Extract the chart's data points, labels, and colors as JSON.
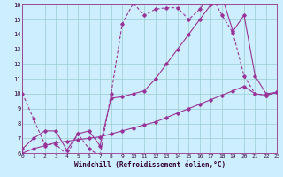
{
  "xlabel": "Windchill (Refroidissement éolien,°C)",
  "bg_color": "#cceeff",
  "line_color": "#993399",
  "grid_color": "#99cccc",
  "xmin": 0,
  "xmax": 23,
  "ymin": 6,
  "ymax": 16,
  "line1_x": [
    0,
    1,
    2,
    3,
    4,
    5,
    6,
    7,
    8,
    9,
    10,
    11,
    12,
    13,
    14,
    15,
    16,
    17,
    18,
    19,
    20,
    21,
    22,
    23
  ],
  "line1_y": [
    10.0,
    8.3,
    6.6,
    6.6,
    5.9,
    7.3,
    6.3,
    5.8,
    10.0,
    14.7,
    16.1,
    15.3,
    15.7,
    15.8,
    15.8,
    15.0,
    15.7,
    16.7,
    15.3,
    14.1,
    11.2,
    10.0,
    9.9,
    10.1
  ],
  "line2_x": [
    0,
    1,
    2,
    3,
    4,
    5,
    6,
    7,
    8,
    9,
    10,
    11,
    12,
    13,
    14,
    15,
    16,
    17,
    18,
    19,
    20,
    21,
    22,
    23
  ],
  "line2_y": [
    6.0,
    6.3,
    6.5,
    6.7,
    6.8,
    6.9,
    7.0,
    7.1,
    7.3,
    7.5,
    7.7,
    7.9,
    8.1,
    8.4,
    8.7,
    9.0,
    9.3,
    9.6,
    9.9,
    10.2,
    10.5,
    10.0,
    9.9,
    10.1
  ],
  "line3_x": [
    0,
    1,
    2,
    3,
    4,
    5,
    6,
    7,
    8,
    9,
    10,
    11,
    12,
    13,
    14,
    15,
    16,
    17,
    18,
    19,
    20,
    21,
    22,
    23
  ],
  "line3_y": [
    6.3,
    7.0,
    7.5,
    7.5,
    6.2,
    7.3,
    7.5,
    6.5,
    9.7,
    9.8,
    10.0,
    10.2,
    11.0,
    12.0,
    13.0,
    14.0,
    15.0,
    16.0,
    16.6,
    14.2,
    15.3,
    11.2,
    10.0,
    10.1
  ]
}
